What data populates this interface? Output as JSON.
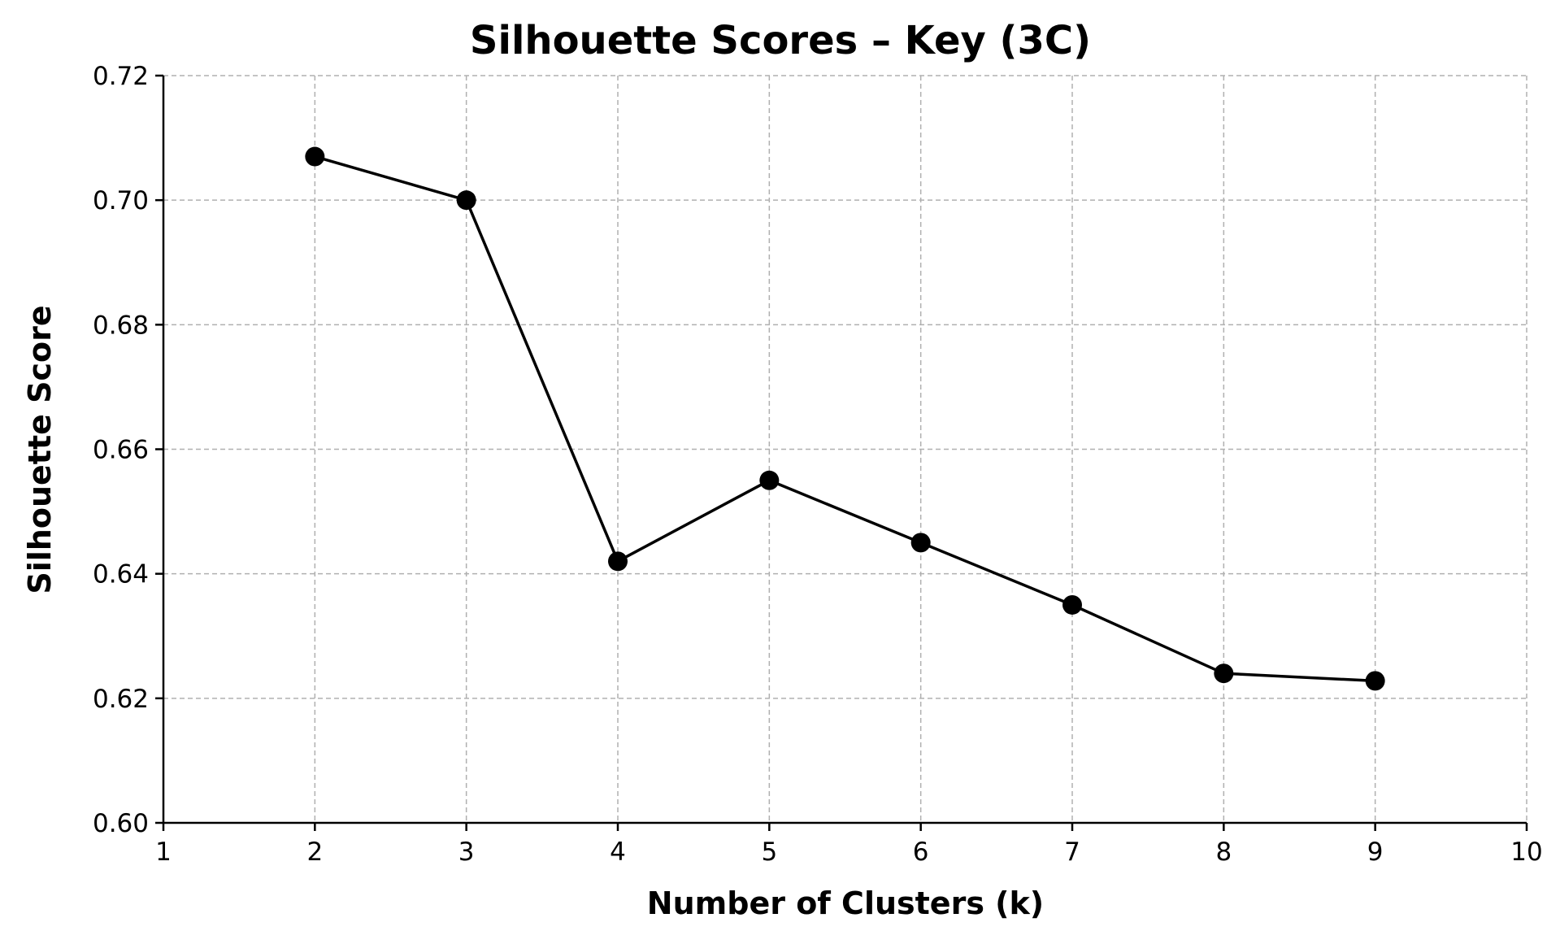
{
  "chart_data": {
    "type": "line",
    "title": "Silhouette Scores – Key (3C)",
    "xlabel": "Number of Clusters (k)",
    "ylabel": "Silhouette Score",
    "xlim": [
      1,
      10
    ],
    "ylim": [
      0.6,
      0.72
    ],
    "xticks": [
      1,
      2,
      3,
      4,
      5,
      6,
      7,
      8,
      9,
      10
    ],
    "xtick_labels": [
      "1",
      "2",
      "3",
      "4",
      "5",
      "6",
      "7",
      "8",
      "9",
      "10"
    ],
    "yticks": [
      0.6,
      0.62,
      0.64,
      0.66,
      0.68,
      0.7,
      0.72
    ],
    "ytick_labels": [
      "0.60",
      "0.62",
      "0.64",
      "0.66",
      "0.68",
      "0.70",
      "0.72"
    ],
    "grid": true,
    "series": [
      {
        "color": "#000000",
        "marker": "circle",
        "x": [
          2,
          3,
          4,
          5,
          6,
          7,
          8,
          9
        ],
        "y": [
          0.707,
          0.7,
          0.642,
          0.655,
          0.645,
          0.635,
          0.624,
          0.6228
        ]
      }
    ]
  }
}
